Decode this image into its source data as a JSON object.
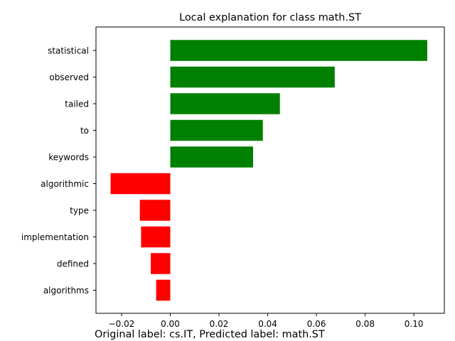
{
  "chart_data": {
    "type": "bar",
    "orientation": "horizontal",
    "title": "Local explanation for class math.ST",
    "caption": "Original label: cs.IT, Predicted label: math.ST",
    "categories": [
      "statistical",
      "observed",
      "tailed",
      "to",
      "keywords",
      "algorithmic",
      "type",
      "implementation",
      "defined",
      "algorithms"
    ],
    "values": [
      0.1055,
      0.0675,
      0.045,
      0.038,
      0.034,
      -0.0245,
      -0.0125,
      -0.012,
      -0.008,
      -0.0058
    ],
    "xlim": [
      -0.0305,
      0.1125
    ],
    "xticks": [
      -0.02,
      0.0,
      0.02,
      0.04,
      0.06,
      0.08,
      0.1
    ],
    "xtick_labels": [
      "−0.02",
      "0.00",
      "0.02",
      "0.04",
      "0.06",
      "0.08",
      "0.10"
    ],
    "colors": {
      "positive": "#008000",
      "negative": "#ff0000"
    },
    "grid": false,
    "legend": "none"
  }
}
